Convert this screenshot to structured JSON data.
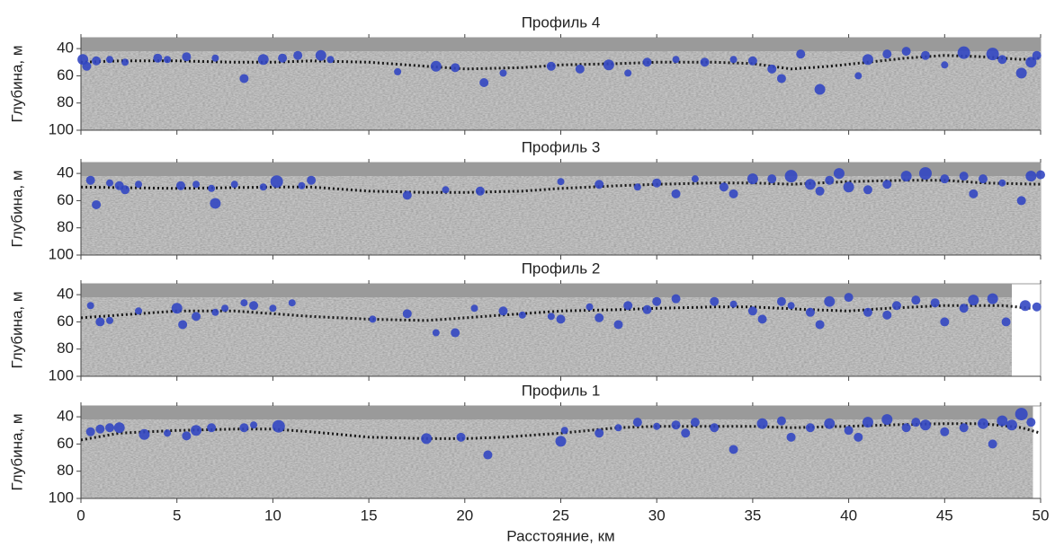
{
  "chart_data": [
    {
      "type": "scatter",
      "title": "Профиль 4",
      "ylabel": "Глубина, м",
      "xlim": [
        0,
        50
      ],
      "ylim": [
        32,
        100
      ],
      "y_inverted": true,
      "yticks": [
        40,
        60,
        80,
        100
      ],
      "xticks": [
        0,
        5,
        10,
        15,
        20,
        25,
        30,
        35,
        40,
        45,
        50
      ],
      "series": [
        {
          "type": "line",
          "color": "#1a1a1a",
          "x": [
            0,
            2,
            5,
            8,
            10,
            12,
            15,
            18,
            20,
            23,
            25,
            28,
            30,
            33,
            35,
            37,
            39,
            41,
            43,
            45,
            47,
            49,
            50
          ],
          "values": [
            50,
            49,
            49,
            50,
            50,
            49,
            50,
            53,
            55,
            54,
            52,
            51,
            50,
            50,
            51,
            55,
            53,
            50,
            47,
            45,
            46,
            48,
            47
          ]
        },
        {
          "type": "scatter",
          "color": "#3347c2",
          "x": [
            0.1,
            0.3,
            0.8,
            1.5,
            2.3,
            4,
            4.5,
            5.5,
            7,
            8.5,
            9.5,
            10.5,
            11.3,
            12.5,
            13,
            16.5,
            18.5,
            19.5,
            21,
            22,
            24.5,
            26,
            27.5,
            28.5,
            29.5,
            31,
            32.5,
            34,
            35,
            36,
            36.5,
            37.5,
            38.5,
            40.5,
            41,
            42,
            43,
            44,
            45,
            46,
            47.5,
            48,
            49,
            49.5,
            49.8
          ],
          "values": [
            48,
            53,
            49,
            48,
            50,
            47,
            48,
            46,
            47,
            62,
            48,
            47,
            45,
            45,
            48,
            57,
            53,
            54,
            65,
            58,
            53,
            55,
            52,
            58,
            50,
            48,
            50,
            48,
            49,
            55,
            62,
            44,
            70,
            60,
            48,
            44,
            42,
            45,
            52,
            43,
            44,
            48,
            58,
            50,
            45
          ],
          "sizes": [
            6,
            5,
            5,
            4,
            4,
            5,
            4,
            5,
            4,
            5,
            6,
            5,
            5,
            6,
            4,
            4,
            6,
            5,
            5,
            4,
            5,
            5,
            6,
            4,
            5,
            4,
            5,
            4,
            5,
            5,
            5,
            5,
            6,
            4,
            6,
            5,
            5,
            5,
            4,
            7,
            7,
            5,
            6,
            6,
            5
          ]
        }
      ]
    },
    {
      "type": "scatter",
      "title": "Профиль 3",
      "ylabel": "Глубина, м",
      "xlim": [
        0,
        50
      ],
      "ylim": [
        32,
        100
      ],
      "y_inverted": true,
      "yticks": [
        40,
        60,
        80,
        100
      ],
      "xticks": [
        0,
        5,
        10,
        15,
        20,
        25,
        30,
        35,
        40,
        45,
        50
      ],
      "series": [
        {
          "type": "line",
          "color": "#1a1a1a",
          "x": [
            0,
            5,
            10,
            12,
            15,
            18,
            20,
            23,
            25,
            28,
            30,
            33,
            35,
            37,
            40,
            43,
            45,
            47,
            50
          ],
          "values": [
            50,
            51,
            50,
            50,
            53,
            54,
            54,
            53,
            51,
            49,
            48,
            47,
            47,
            48,
            46,
            45,
            45,
            47,
            48
          ]
        },
        {
          "type": "scatter",
          "color": "#3347c2",
          "x": [
            0.5,
            0.8,
            1.5,
            2,
            2.3,
            3,
            5.2,
            6,
            6.8,
            7,
            8,
            9.5,
            10.2,
            11.5,
            12,
            17,
            19,
            20.8,
            25,
            27,
            29,
            30,
            31,
            32,
            33.5,
            34,
            35,
            36,
            37,
            38,
            38.5,
            39,
            39.5,
            40,
            41,
            42,
            43,
            44,
            45,
            46,
            46.5,
            47,
            48,
            49,
            49.5,
            50
          ],
          "values": [
            45,
            63,
            47,
            49,
            52,
            48,
            49,
            48,
            51,
            62,
            48,
            50,
            46,
            49,
            45,
            56,
            52,
            53,
            46,
            48,
            50,
            47,
            55,
            44,
            50,
            55,
            44,
            44,
            42,
            48,
            53,
            45,
            40,
            50,
            52,
            48,
            42,
            40,
            44,
            42,
            55,
            44,
            47,
            60,
            42,
            41
          ],
          "sizes": [
            5,
            5,
            4,
            5,
            5,
            4,
            5,
            4,
            4,
            6,
            4,
            4,
            7,
            4,
            5,
            5,
            4,
            5,
            4,
            5,
            4,
            5,
            5,
            4,
            5,
            5,
            6,
            5,
            7,
            6,
            5,
            5,
            6,
            6,
            5,
            5,
            6,
            7,
            5,
            5,
            5,
            5,
            4,
            5,
            6,
            5
          ]
        }
      ]
    },
    {
      "type": "scatter",
      "title": "Профиль 2",
      "ylabel": "Глубина, м",
      "xlim": [
        0,
        50
      ],
      "xextent": [
        0,
        48.5
      ],
      "ylim": [
        32,
        100
      ],
      "y_inverted": true,
      "yticks": [
        40,
        60,
        80,
        100
      ],
      "xticks": [
        0,
        5,
        10,
        15,
        20,
        25,
        30,
        35,
        40,
        45,
        50
      ],
      "series": [
        {
          "type": "line",
          "color": "#1a1a1a",
          "x": [
            0,
            2,
            5,
            8,
            10,
            12,
            15,
            18,
            20,
            22,
            25,
            28,
            30,
            33,
            35,
            38,
            40,
            42,
            45,
            48,
            49.5
          ],
          "values": [
            57,
            55,
            52,
            52,
            54,
            56,
            58,
            59,
            57,
            55,
            52,
            51,
            50,
            49,
            49,
            51,
            52,
            50,
            48,
            48,
            50
          ]
        },
        {
          "type": "scatter",
          "color": "#3347c2",
          "x": [
            0.5,
            1,
            1.5,
            3,
            5,
            5.3,
            6,
            7,
            7.5,
            8.5,
            9,
            10,
            11,
            15.2,
            17,
            18.5,
            19.5,
            20.5,
            22,
            23,
            24.5,
            25,
            26.5,
            27,
            28,
            28.5,
            29.5,
            30,
            31,
            33,
            34,
            35,
            35.5,
            36.5,
            37,
            38,
            38.5,
            39,
            40,
            41,
            42,
            42.5,
            43.5,
            44.5,
            45,
            46,
            46.5,
            47.5,
            48.2,
            49.2,
            49.8
          ],
          "values": [
            48,
            60,
            59,
            52,
            50,
            62,
            56,
            53,
            50,
            46,
            48,
            50,
            46,
            58,
            54,
            68,
            68,
            50,
            52,
            55,
            56,
            58,
            49,
            57,
            62,
            48,
            51,
            45,
            43,
            45,
            47,
            52,
            58,
            45,
            48,
            53,
            62,
            45,
            42,
            53,
            55,
            48,
            44,
            46,
            60,
            50,
            44,
            43,
            60,
            48,
            49
          ],
          "sizes": [
            4,
            5,
            4,
            4,
            6,
            5,
            5,
            4,
            4,
            4,
            5,
            4,
            4,
            4,
            5,
            4,
            5,
            4,
            5,
            4,
            4,
            5,
            4,
            5,
            5,
            5,
            5,
            5,
            5,
            5,
            4,
            5,
            5,
            5,
            4,
            5,
            5,
            6,
            5,
            5,
            5,
            5,
            5,
            5,
            5,
            5,
            6,
            6,
            5,
            6,
            5
          ]
        }
      ]
    },
    {
      "type": "scatter",
      "title": "Профиль 1",
      "ylabel": "Глубина, м",
      "xlabel": "Расстояние, км",
      "xlim": [
        0,
        50
      ],
      "xextent": [
        0,
        49.6
      ],
      "ylim": [
        32,
        100
      ],
      "y_inverted": true,
      "yticks": [
        40,
        60,
        80,
        100
      ],
      "xticks": [
        0,
        5,
        10,
        15,
        20,
        25,
        30,
        35,
        40,
        45,
        50
      ],
      "series": [
        {
          "type": "line",
          "color": "#1a1a1a",
          "x": [
            0,
            2,
            5,
            8,
            10,
            12,
            15,
            18,
            20,
            22,
            25,
            28,
            30,
            33,
            35,
            37,
            40,
            42,
            45,
            47,
            49,
            50
          ],
          "values": [
            57,
            52,
            50,
            49,
            49,
            51,
            55,
            56,
            56,
            55,
            52,
            48,
            47,
            47,
            47,
            48,
            47,
            46,
            45,
            45,
            48,
            52
          ]
        },
        {
          "type": "scatter",
          "color": "#3347c2",
          "x": [
            0.5,
            1,
            1.5,
            2,
            3.3,
            4.5,
            5.5,
            6,
            6.8,
            8.5,
            9,
            10.3,
            18,
            19.8,
            21.2,
            25,
            25.2,
            27,
            28,
            29,
            30,
            31,
            31.5,
            32,
            33,
            34,
            35.5,
            36.5,
            37,
            38,
            39,
            40,
            40.5,
            41,
            42,
            43,
            43.5,
            44,
            45,
            46,
            47,
            47.5,
            48,
            48.5,
            49,
            49.5
          ],
          "values": [
            51,
            49,
            48,
            48,
            53,
            52,
            54,
            50,
            48,
            48,
            46,
            47,
            56,
            55,
            68,
            58,
            50,
            52,
            48,
            44,
            47,
            46,
            52,
            44,
            48,
            64,
            45,
            43,
            55,
            48,
            45,
            50,
            55,
            44,
            42,
            48,
            44,
            46,
            51,
            48,
            45,
            60,
            43,
            46,
            38,
            44
          ],
          "sizes": [
            5,
            5,
            5,
            6,
            6,
            4,
            5,
            6,
            5,
            5,
            4,
            7,
            6,
            5,
            5,
            6,
            4,
            5,
            4,
            5,
            4,
            5,
            5,
            5,
            5,
            5,
            6,
            5,
            5,
            5,
            6,
            5,
            5,
            6,
            6,
            5,
            5,
            6,
            5,
            5,
            6,
            5,
            6,
            6,
            7,
            5
          ]
        }
      ]
    }
  ]
}
